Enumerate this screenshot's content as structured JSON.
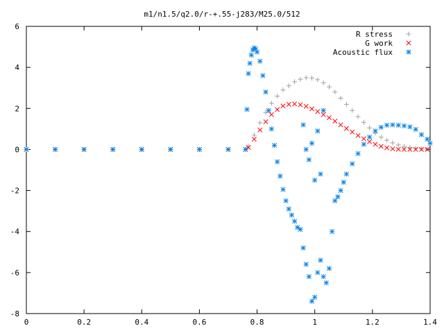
{
  "chart_data": {
    "type": "scatter",
    "title": "m1/n1.5/q2.0/r-+.55-j283/M25.0/512",
    "xlabel": "",
    "ylabel": "",
    "xlim": [
      0,
      1.4
    ],
    "ylim": [
      -8,
      6
    ],
    "x_ticks": [
      "0",
      "0.2",
      "0.4",
      "0.6",
      "0.8",
      "1",
      "1.2",
      "1.4"
    ],
    "y_ticks": [
      "6",
      "4",
      "2",
      "0",
      "-2",
      "-4",
      "-6",
      "-8"
    ],
    "legend_position": "top-right",
    "grid": false,
    "series": [
      {
        "name": "R stress",
        "marker": "plus",
        "color": "#a0a0a0",
        "points": [
          [
            0,
            0
          ],
          [
            0.1,
            0
          ],
          [
            0.2,
            0
          ],
          [
            0.3,
            0
          ],
          [
            0.4,
            0
          ],
          [
            0.5,
            0
          ],
          [
            0.6,
            0
          ],
          [
            0.7,
            0
          ],
          [
            0.76,
            0
          ],
          [
            0.77,
            0.15
          ],
          [
            0.79,
            0.7
          ],
          [
            0.81,
            1.3
          ],
          [
            0.83,
            1.8
          ],
          [
            0.85,
            2.25
          ],
          [
            0.87,
            2.6
          ],
          [
            0.89,
            2.9
          ],
          [
            0.91,
            3.1
          ],
          [
            0.93,
            3.3
          ],
          [
            0.95,
            3.42
          ],
          [
            0.97,
            3.5
          ],
          [
            0.99,
            3.48
          ],
          [
            1.01,
            3.4
          ],
          [
            1.03,
            3.25
          ],
          [
            1.05,
            3.05
          ],
          [
            1.07,
            2.8
          ],
          [
            1.09,
            2.5
          ],
          [
            1.11,
            2.2
          ],
          [
            1.13,
            1.9
          ],
          [
            1.15,
            1.6
          ],
          [
            1.17,
            1.32
          ],
          [
            1.19,
            1.05
          ],
          [
            1.21,
            0.8
          ],
          [
            1.23,
            0.6
          ],
          [
            1.25,
            0.45
          ],
          [
            1.27,
            0.32
          ],
          [
            1.29,
            0.22
          ],
          [
            1.31,
            0.15
          ],
          [
            1.33,
            0.1
          ],
          [
            1.35,
            0.06
          ],
          [
            1.37,
            0.04
          ],
          [
            1.39,
            0.02
          ]
        ]
      },
      {
        "name": "G work",
        "marker": "cross",
        "color": "#ff0000",
        "points": [
          [
            0,
            0
          ],
          [
            0.1,
            0
          ],
          [
            0.2,
            0
          ],
          [
            0.3,
            0
          ],
          [
            0.4,
            0
          ],
          [
            0.5,
            0
          ],
          [
            0.6,
            0
          ],
          [
            0.7,
            0
          ],
          [
            0.76,
            0
          ],
          [
            0.77,
            0.1
          ],
          [
            0.79,
            0.5
          ],
          [
            0.81,
            0.95
          ],
          [
            0.83,
            1.35
          ],
          [
            0.85,
            1.7
          ],
          [
            0.87,
            1.95
          ],
          [
            0.89,
            2.12
          ],
          [
            0.91,
            2.2
          ],
          [
            0.93,
            2.22
          ],
          [
            0.95,
            2.18
          ],
          [
            0.97,
            2.1
          ],
          [
            0.99,
            1.98
          ],
          [
            1.01,
            1.85
          ],
          [
            1.03,
            1.7
          ],
          [
            1.05,
            1.55
          ],
          [
            1.07,
            1.38
          ],
          [
            1.09,
            1.2
          ],
          [
            1.11,
            1.02
          ],
          [
            1.13,
            0.85
          ],
          [
            1.15,
            0.68
          ],
          [
            1.17,
            0.52
          ],
          [
            1.19,
            0.38
          ],
          [
            1.21,
            0.25
          ],
          [
            1.23,
            0.15
          ],
          [
            1.25,
            0.08
          ],
          [
            1.27,
            0.03
          ],
          [
            1.29,
            0.01
          ],
          [
            1.31,
            0
          ],
          [
            1.33,
            0
          ],
          [
            1.35,
            0
          ],
          [
            1.37,
            0
          ],
          [
            1.39,
            0
          ]
        ]
      },
      {
        "name": "Acoustic flux",
        "marker": "star",
        "color": "#0a83e6",
        "points": [
          [
            0,
            0
          ],
          [
            0.1,
            0
          ],
          [
            0.2,
            0
          ],
          [
            0.3,
            0
          ],
          [
            0.4,
            0
          ],
          [
            0.5,
            0
          ],
          [
            0.6,
            0
          ],
          [
            0.7,
            0
          ],
          [
            0.76,
            0
          ],
          [
            0.765,
            1.95
          ],
          [
            0.77,
            3.7
          ],
          [
            0.775,
            4.2
          ],
          [
            0.78,
            4.6
          ],
          [
            0.785,
            4.85
          ],
          [
            0.79,
            4.95
          ],
          [
            0.795,
            4.9
          ],
          [
            0.8,
            4.75
          ],
          [
            0.81,
            4.3
          ],
          [
            0.82,
            3.6
          ],
          [
            0.83,
            2.8
          ],
          [
            0.84,
            1.9
          ],
          [
            0.85,
            1.0
          ],
          [
            0.86,
            0.2
          ],
          [
            0.87,
            -0.6
          ],
          [
            0.88,
            -1.3
          ],
          [
            0.89,
            -1.95
          ],
          [
            0.9,
            -2.5
          ],
          [
            0.91,
            -2.9
          ],
          [
            0.92,
            -3.2
          ],
          [
            0.93,
            -3.5
          ],
          [
            0.94,
            -3.8
          ],
          [
            0.95,
            -3.9
          ],
          [
            0.96,
            -4.8
          ],
          [
            0.97,
            -5.6
          ],
          [
            0.98,
            -6.2
          ],
          [
            0.99,
            -7.4
          ],
          [
            1.0,
            -7.2
          ],
          [
            1.01,
            -6.0
          ],
          [
            1.02,
            -5.4
          ],
          [
            1.03,
            -6.2
          ],
          [
            1.04,
            -6.5
          ],
          [
            1.05,
            -5.8
          ],
          [
            1.06,
            -4.0
          ],
          [
            1.07,
            -2.5
          ],
          [
            1.08,
            -2.3
          ],
          [
            1.09,
            -2.0
          ],
          [
            1.1,
            -1.6
          ],
          [
            1.11,
            -1.2
          ],
          [
            1.13,
            -0.7
          ],
          [
            1.15,
            -0.2
          ],
          [
            1.17,
            0.25
          ],
          [
            1.19,
            0.6
          ],
          [
            1.21,
            0.9
          ],
          [
            1.23,
            1.08
          ],
          [
            1.25,
            1.18
          ],
          [
            1.27,
            1.2
          ],
          [
            1.29,
            1.18
          ],
          [
            1.31,
            1.15
          ],
          [
            1.33,
            1.1
          ],
          [
            1.35,
            0.98
          ],
          [
            1.37,
            0.72
          ],
          [
            1.39,
            0.5
          ],
          [
            1.4,
            0.3
          ],
          [
            0.96,
            1.2
          ],
          [
            0.97,
            0.0
          ],
          [
            0.98,
            -0.5
          ],
          [
            0.99,
            0.3
          ],
          [
            1.0,
            -1.5
          ],
          [
            1.01,
            0.9
          ],
          [
            1.02,
            -1.2
          ],
          [
            1.03,
            1.9
          ]
        ]
      }
    ]
  }
}
